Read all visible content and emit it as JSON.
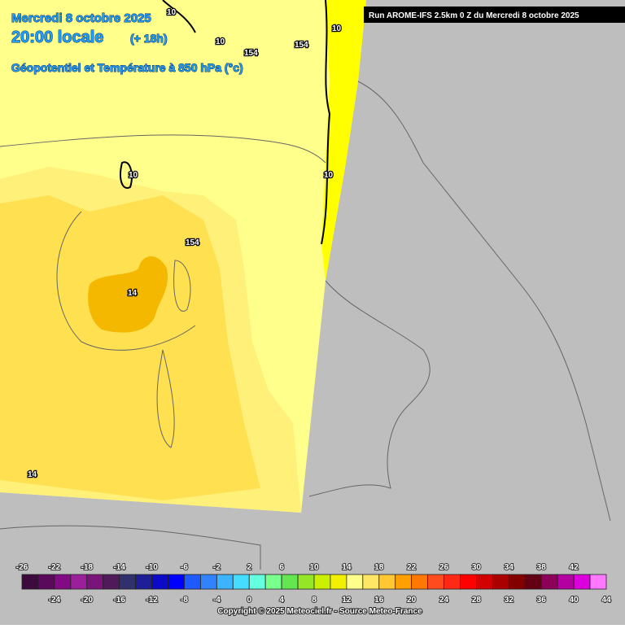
{
  "header": {
    "date": "Mercredi 8 octobre 2025",
    "time": "20:00 locale",
    "lead": "(+ 18h)",
    "field": "Géopotentiel et Température à 850 hPa (°c)",
    "run": "Run AROME-IFS 2.5km 0 Z du Mercredi 8 octobre 2025"
  },
  "map": {
    "labels": [
      "10",
      "10",
      "10",
      "154",
      "154",
      "10",
      "10",
      "154",
      "14",
      "14"
    ]
  },
  "legend": {
    "ticks": [
      -26,
      -24,
      -22,
      -20,
      -18,
      -16,
      -14,
      -12,
      -10,
      -8,
      -6,
      -4,
      -2,
      0,
      2,
      4,
      6,
      8,
      10,
      12,
      14,
      16,
      18,
      20,
      22,
      24,
      26,
      28,
      30,
      32,
      34,
      36,
      38,
      40,
      42,
      44
    ],
    "colors": [
      "#3c0a3c",
      "#5a0a5a",
      "#820a82",
      "#9b1e9b",
      "#7a147a",
      "#501a5a",
      "#30306e",
      "#1e1e96",
      "#0a0ac8",
      "#0000ff",
      "#1e5aff",
      "#3282ff",
      "#3cb4ff",
      "#46dcff",
      "#64ffdc",
      "#78ff8c",
      "#64e650",
      "#96e628",
      "#c8f000",
      "#f0f000",
      "#ffff8c",
      "#ffe664",
      "#ffc832",
      "#ffa000",
      "#ff7800",
      "#ff4b1e",
      "#ff2814",
      "#ff0000",
      "#d20000",
      "#aa0000",
      "#820000",
      "#640014",
      "#8c005a",
      "#b400a0",
      "#dc00dc",
      "#ff78ff"
    ]
  },
  "footer": {
    "copyright": "Copyright © 2025 Meteociel.fr - Source Meteo-France"
  }
}
